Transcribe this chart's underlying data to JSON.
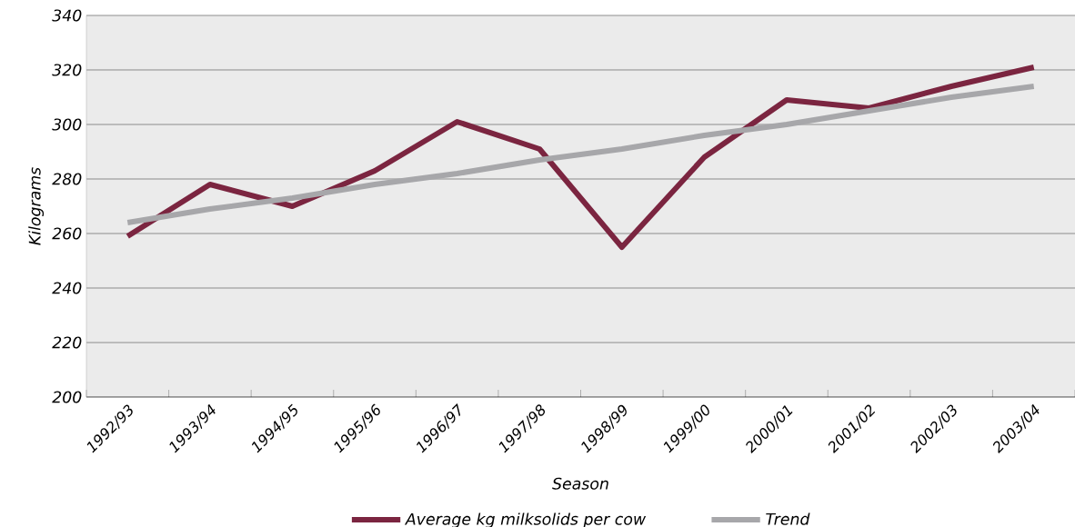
{
  "chart_data": {
    "type": "line",
    "xlabel": "Season",
    "ylabel": "Kilograms",
    "categories": [
      "1992/93",
      "1993/94",
      "1994/95",
      "1995/96",
      "1996/97",
      "1997/98",
      "1998/99",
      "1999/00",
      "2000/01",
      "2001/02",
      "2002/03",
      "2003/04"
    ],
    "series": [
      {
        "name": "Average kg milksolids per cow",
        "color": "#7b2540",
        "values": [
          259,
          278,
          270,
          283,
          301,
          291,
          255,
          288,
          309,
          306,
          314,
          321
        ]
      },
      {
        "name": "Trend",
        "color": "#a7a7aa",
        "values": [
          264,
          269,
          273,
          278,
          282,
          287,
          291,
          296,
          300,
          305,
          310,
          314
        ]
      }
    ],
    "ylim": [
      200,
      340
    ],
    "yticks": [
      200,
      220,
      240,
      260,
      280,
      300,
      320,
      340
    ],
    "grid": "y",
    "legend": "bottom"
  }
}
